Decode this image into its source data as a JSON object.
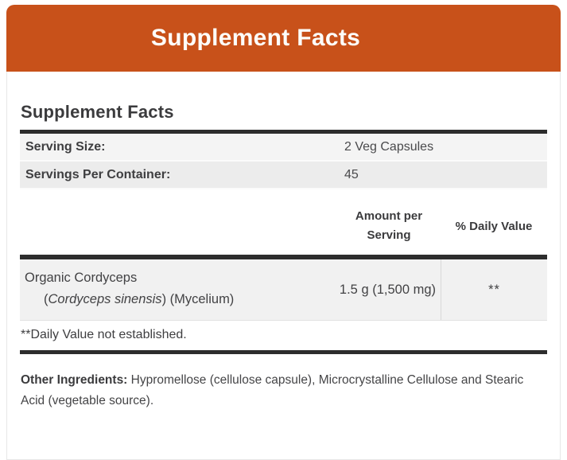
{
  "banner": {
    "title": "Supplement Facts"
  },
  "panel": {
    "heading": "Supplement Facts",
    "serving_info": {
      "rows": [
        {
          "label": "Serving Size:",
          "value": "2 Veg Capsules"
        },
        {
          "label": "Servings Per Container:",
          "value": "45"
        }
      ]
    },
    "columns": {
      "amount_header": "Amount per Serving",
      "dv_header": "% Daily Value"
    },
    "ingredient_rows": [
      {
        "name": "Organic Cordyceps",
        "botanical_prefix": "(",
        "botanical_name": "Cordyceps sinensis",
        "botanical_suffix": ") (Mycelium)",
        "amount": "1.5 g (1,500 mg)",
        "daily_value": "**"
      }
    ],
    "footnote": "**Daily Value not established.",
    "other_ingredients": {
      "label": "Other Ingredients:",
      "text": " Hypromellose (cellulose capsule), Microcrystalline Cellulose and Stearic Acid (vegetable source)."
    }
  },
  "colors": {
    "accent_orange": "#C8511A",
    "banner_text": "#FDFDFA",
    "text_dark": "#3E3E40",
    "rule_dark": "#2D2D2D",
    "row_light": "#F4F4F4",
    "row_mid": "#ECECEC",
    "ingredient_row_bg": "#F1F1F1"
  }
}
